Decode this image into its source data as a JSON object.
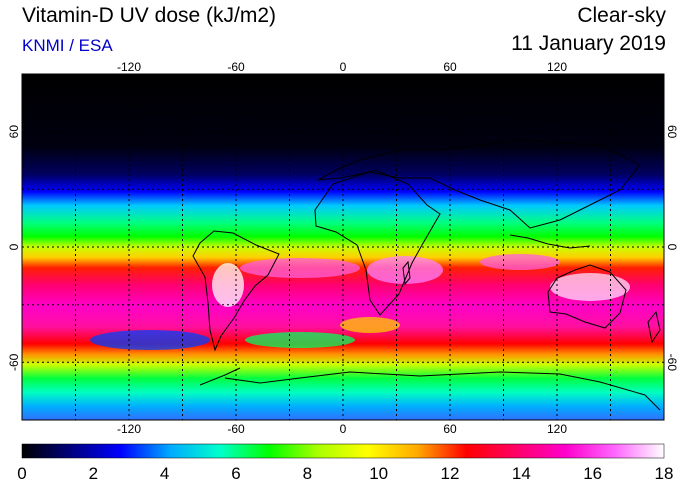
{
  "header": {
    "title": "Vitamin-D UV dose (kJ/m2)",
    "credit": "KNMI / ESA",
    "mode": "Clear-sky",
    "date": "11 January 2019"
  },
  "map": {
    "projection": "equirectangular",
    "lon_range": [
      -180,
      180
    ],
    "lat_range": [
      -90,
      90
    ],
    "lon_ticks": [
      "-120",
      "-60",
      "0",
      "60",
      "120"
    ],
    "lat_ticks": [
      "60",
      "0",
      "-60"
    ],
    "grid_style": "dotted",
    "background": "#000000"
  },
  "colorbar": {
    "min": 0,
    "max": 18,
    "labels": [
      "0",
      "2",
      "4",
      "6",
      "8",
      "10",
      "12",
      "14",
      "16",
      "18"
    ],
    "colors": [
      "#000000",
      "#000080",
      "#0000ff",
      "#00aaff",
      "#00ffcc",
      "#00ff00",
      "#aaff00",
      "#ffff00",
      "#ffaa00",
      "#ff0000",
      "#ff0066",
      "#ff00cc",
      "#ff66ff",
      "#ffffff"
    ]
  }
}
